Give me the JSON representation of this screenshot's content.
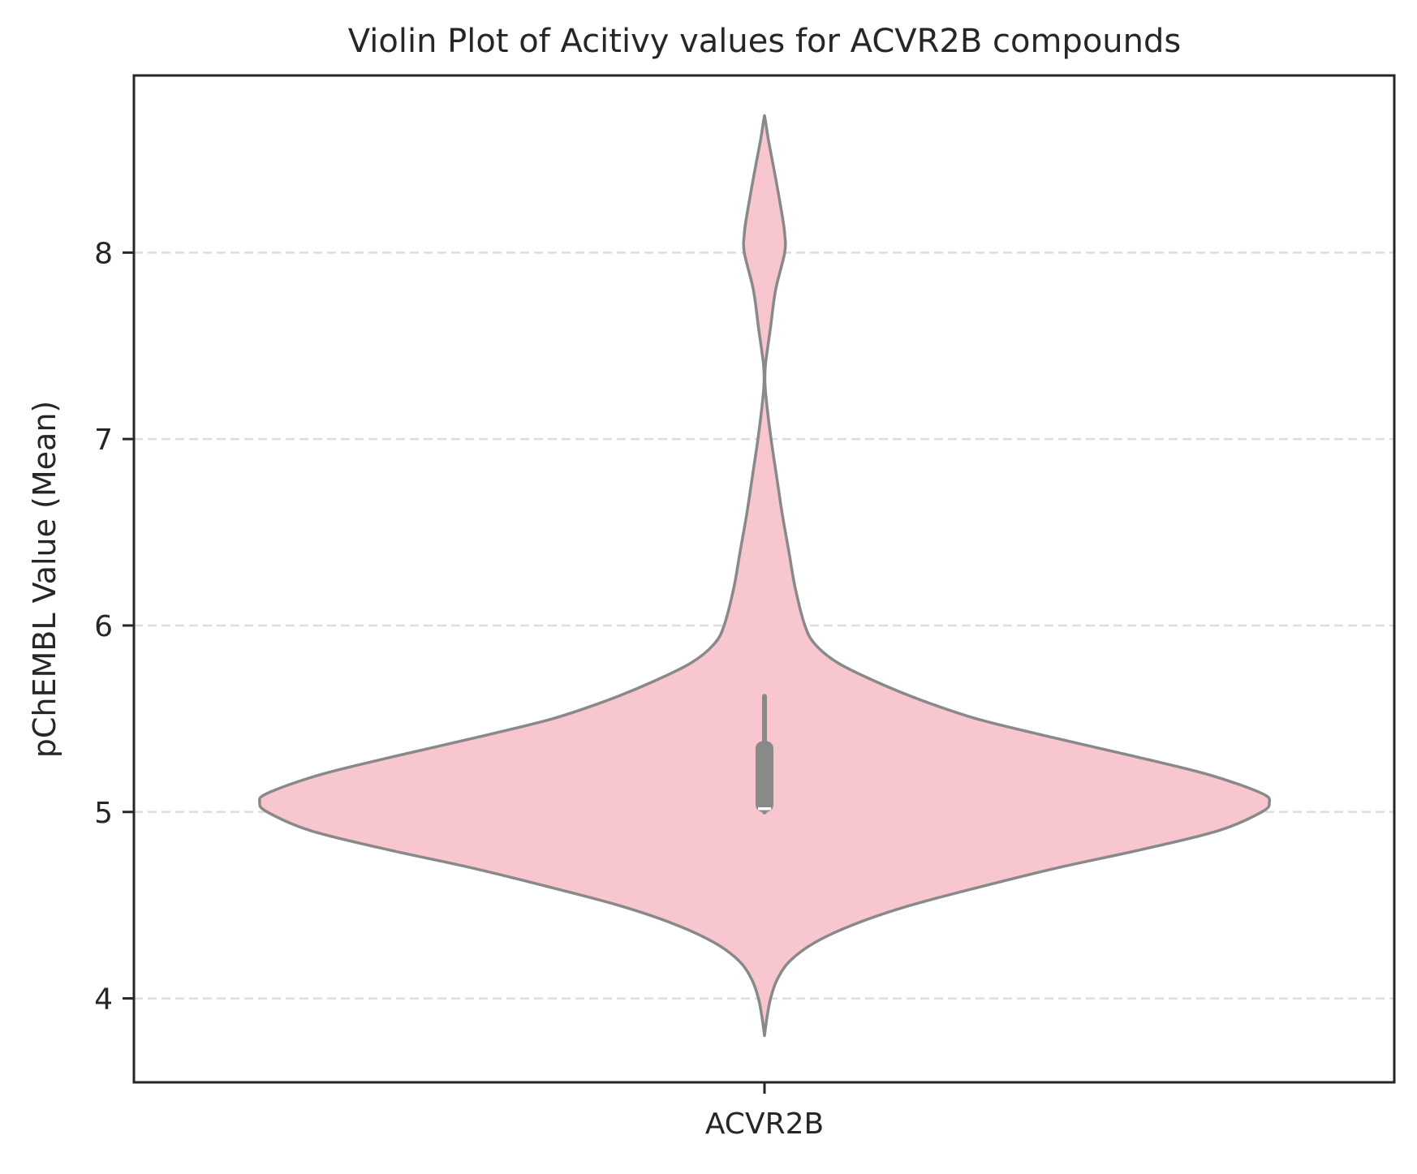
{
  "chart_data": {
    "type": "violin",
    "title": "Violin Plot of Acitivy values for ACVR2B compounds",
    "xlabel": "",
    "ylabel": "pChEMBL Value (Mean)",
    "categories": [
      "ACVR2B"
    ],
    "ylim": [
      3.55,
      8.95
    ],
    "yticks": [
      4,
      5,
      6,
      7,
      8
    ],
    "grid": "y-dashed",
    "colors": {
      "violin_fill": "#f7c6cf",
      "violin_edge": "#898989",
      "box": "#898989",
      "median": "#ffffff",
      "grid": "#dddddd",
      "frame": "#262626"
    },
    "series": [
      {
        "category": "ACVR2B",
        "density_profile": [
          {
            "y": 3.8,
            "w": 0.0
          },
          {
            "y": 3.9,
            "w": 0.005
          },
          {
            "y": 4.0,
            "w": 0.012
          },
          {
            "y": 4.1,
            "w": 0.025
          },
          {
            "y": 4.2,
            "w": 0.05
          },
          {
            "y": 4.3,
            "w": 0.1
          },
          {
            "y": 4.4,
            "w": 0.18
          },
          {
            "y": 4.5,
            "w": 0.29
          },
          {
            "y": 4.6,
            "w": 0.43
          },
          {
            "y": 4.7,
            "w": 0.58
          },
          {
            "y": 4.8,
            "w": 0.75
          },
          {
            "y": 4.9,
            "w": 0.9
          },
          {
            "y": 5.0,
            "w": 0.985
          },
          {
            "y": 5.05,
            "w": 1.0
          },
          {
            "y": 5.1,
            "w": 0.985
          },
          {
            "y": 5.2,
            "w": 0.88
          },
          {
            "y": 5.3,
            "w": 0.73
          },
          {
            "y": 5.4,
            "w": 0.57
          },
          {
            "y": 5.5,
            "w": 0.42
          },
          {
            "y": 5.6,
            "w": 0.31
          },
          {
            "y": 5.7,
            "w": 0.22
          },
          {
            "y": 5.8,
            "w": 0.145
          },
          {
            "y": 5.9,
            "w": 0.1
          },
          {
            "y": 6.0,
            "w": 0.08
          },
          {
            "y": 6.2,
            "w": 0.061
          },
          {
            "y": 6.4,
            "w": 0.048
          },
          {
            "y": 6.6,
            "w": 0.035
          },
          {
            "y": 6.8,
            "w": 0.024
          },
          {
            "y": 7.0,
            "w": 0.013
          },
          {
            "y": 7.2,
            "w": 0.004
          },
          {
            "y": 7.3,
            "w": 0.001
          },
          {
            "y": 7.4,
            "w": 0.002
          },
          {
            "y": 7.6,
            "w": 0.012
          },
          {
            "y": 7.8,
            "w": 0.022
          },
          {
            "y": 8.0,
            "w": 0.04
          },
          {
            "y": 8.1,
            "w": 0.04
          },
          {
            "y": 8.2,
            "w": 0.035
          },
          {
            "y": 8.4,
            "w": 0.022
          },
          {
            "y": 8.6,
            "w": 0.008
          },
          {
            "y": 8.72,
            "w": 0.001
          }
        ],
        "box": {
          "q1": 5.0,
          "median": 5.0,
          "q3": 5.38,
          "whisker_low": 5.0,
          "whisker_high": 5.62
        }
      }
    ]
  }
}
